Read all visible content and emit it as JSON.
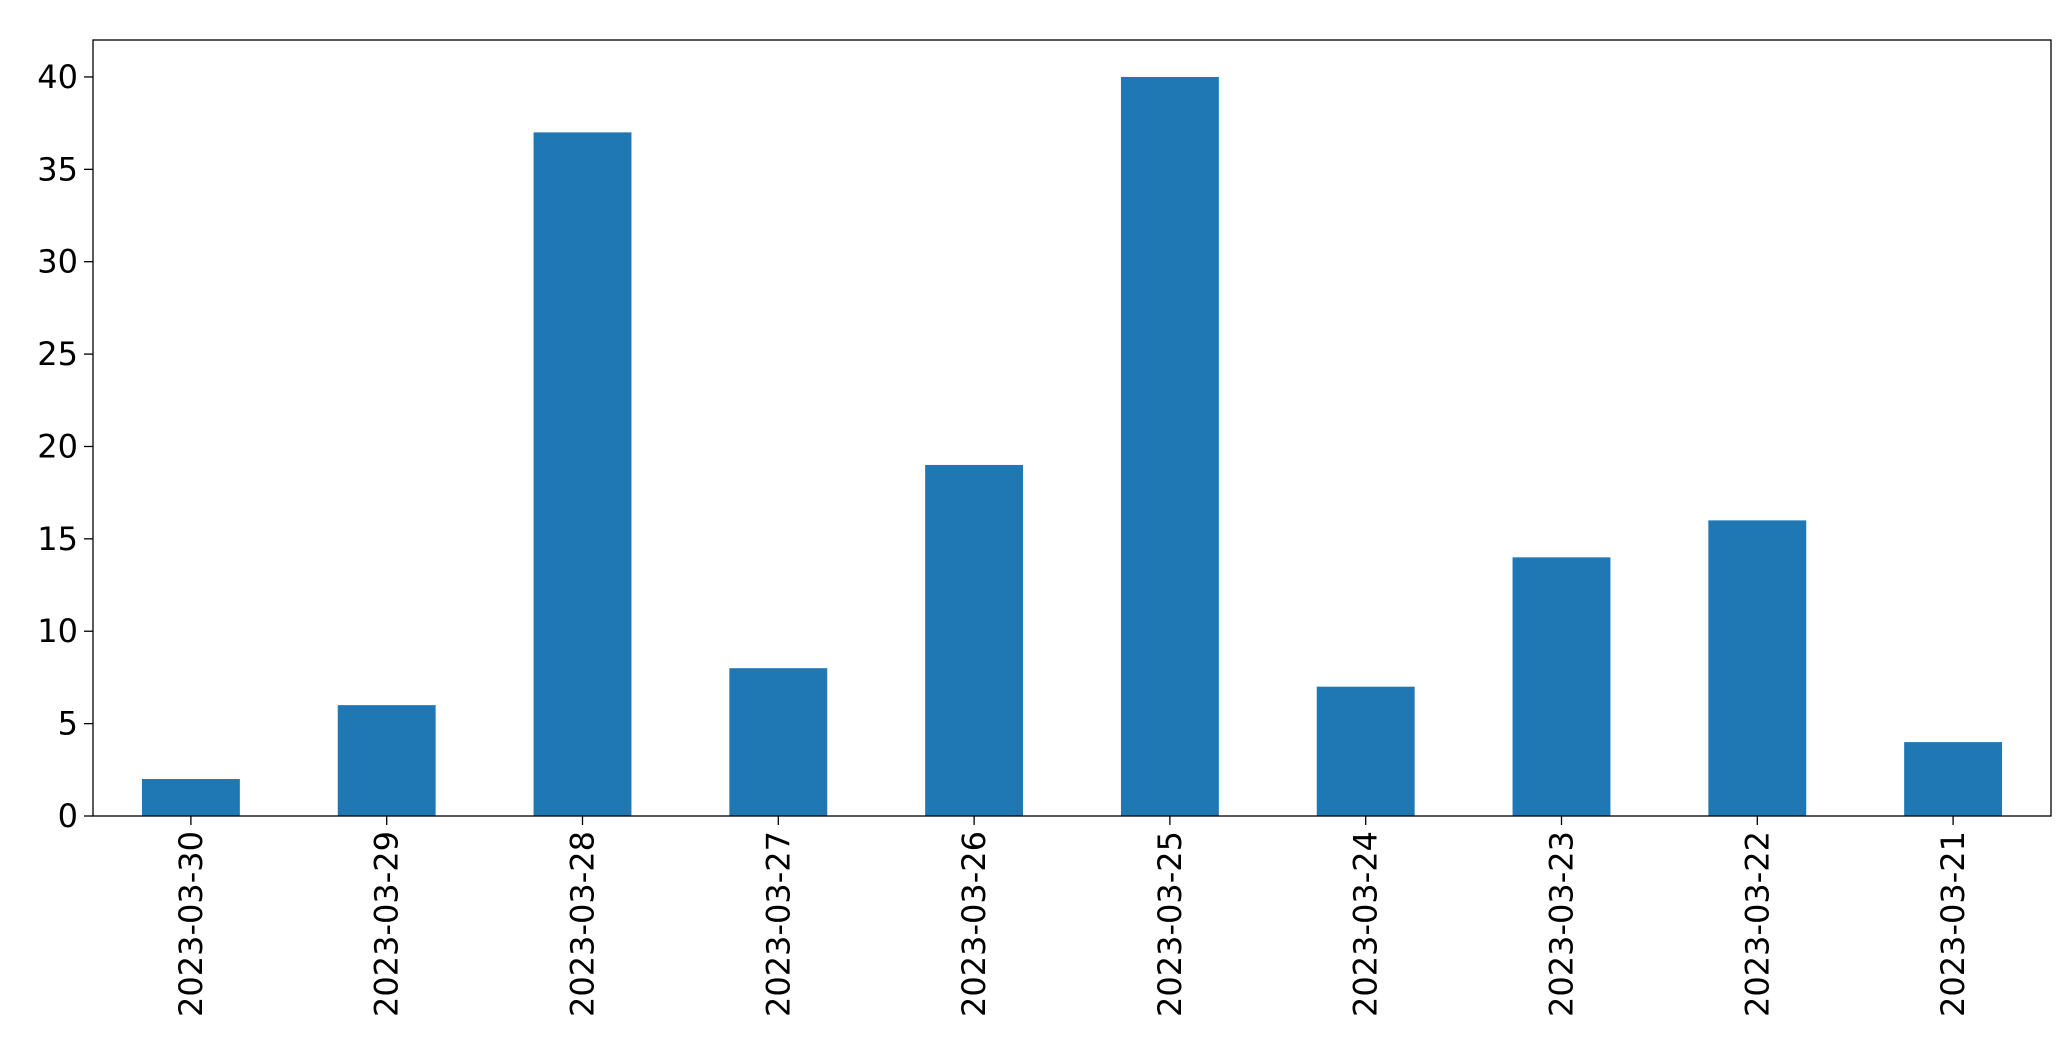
{
  "chart_data": {
    "type": "bar",
    "categories": [
      "2023-03-30",
      "2023-03-29",
      "2023-03-28",
      "2023-03-27",
      "2023-03-26",
      "2023-03-25",
      "2023-03-24",
      "2023-03-23",
      "2023-03-22",
      "2023-03-21"
    ],
    "values": [
      2,
      6,
      37,
      8,
      19,
      40,
      7,
      14,
      16,
      4
    ],
    "color": "#1f77b4",
    "ylim": [
      0,
      42
    ],
    "yticks": [
      0,
      5,
      10,
      15,
      20,
      25,
      30,
      35,
      40
    ],
    "grid": false
  }
}
